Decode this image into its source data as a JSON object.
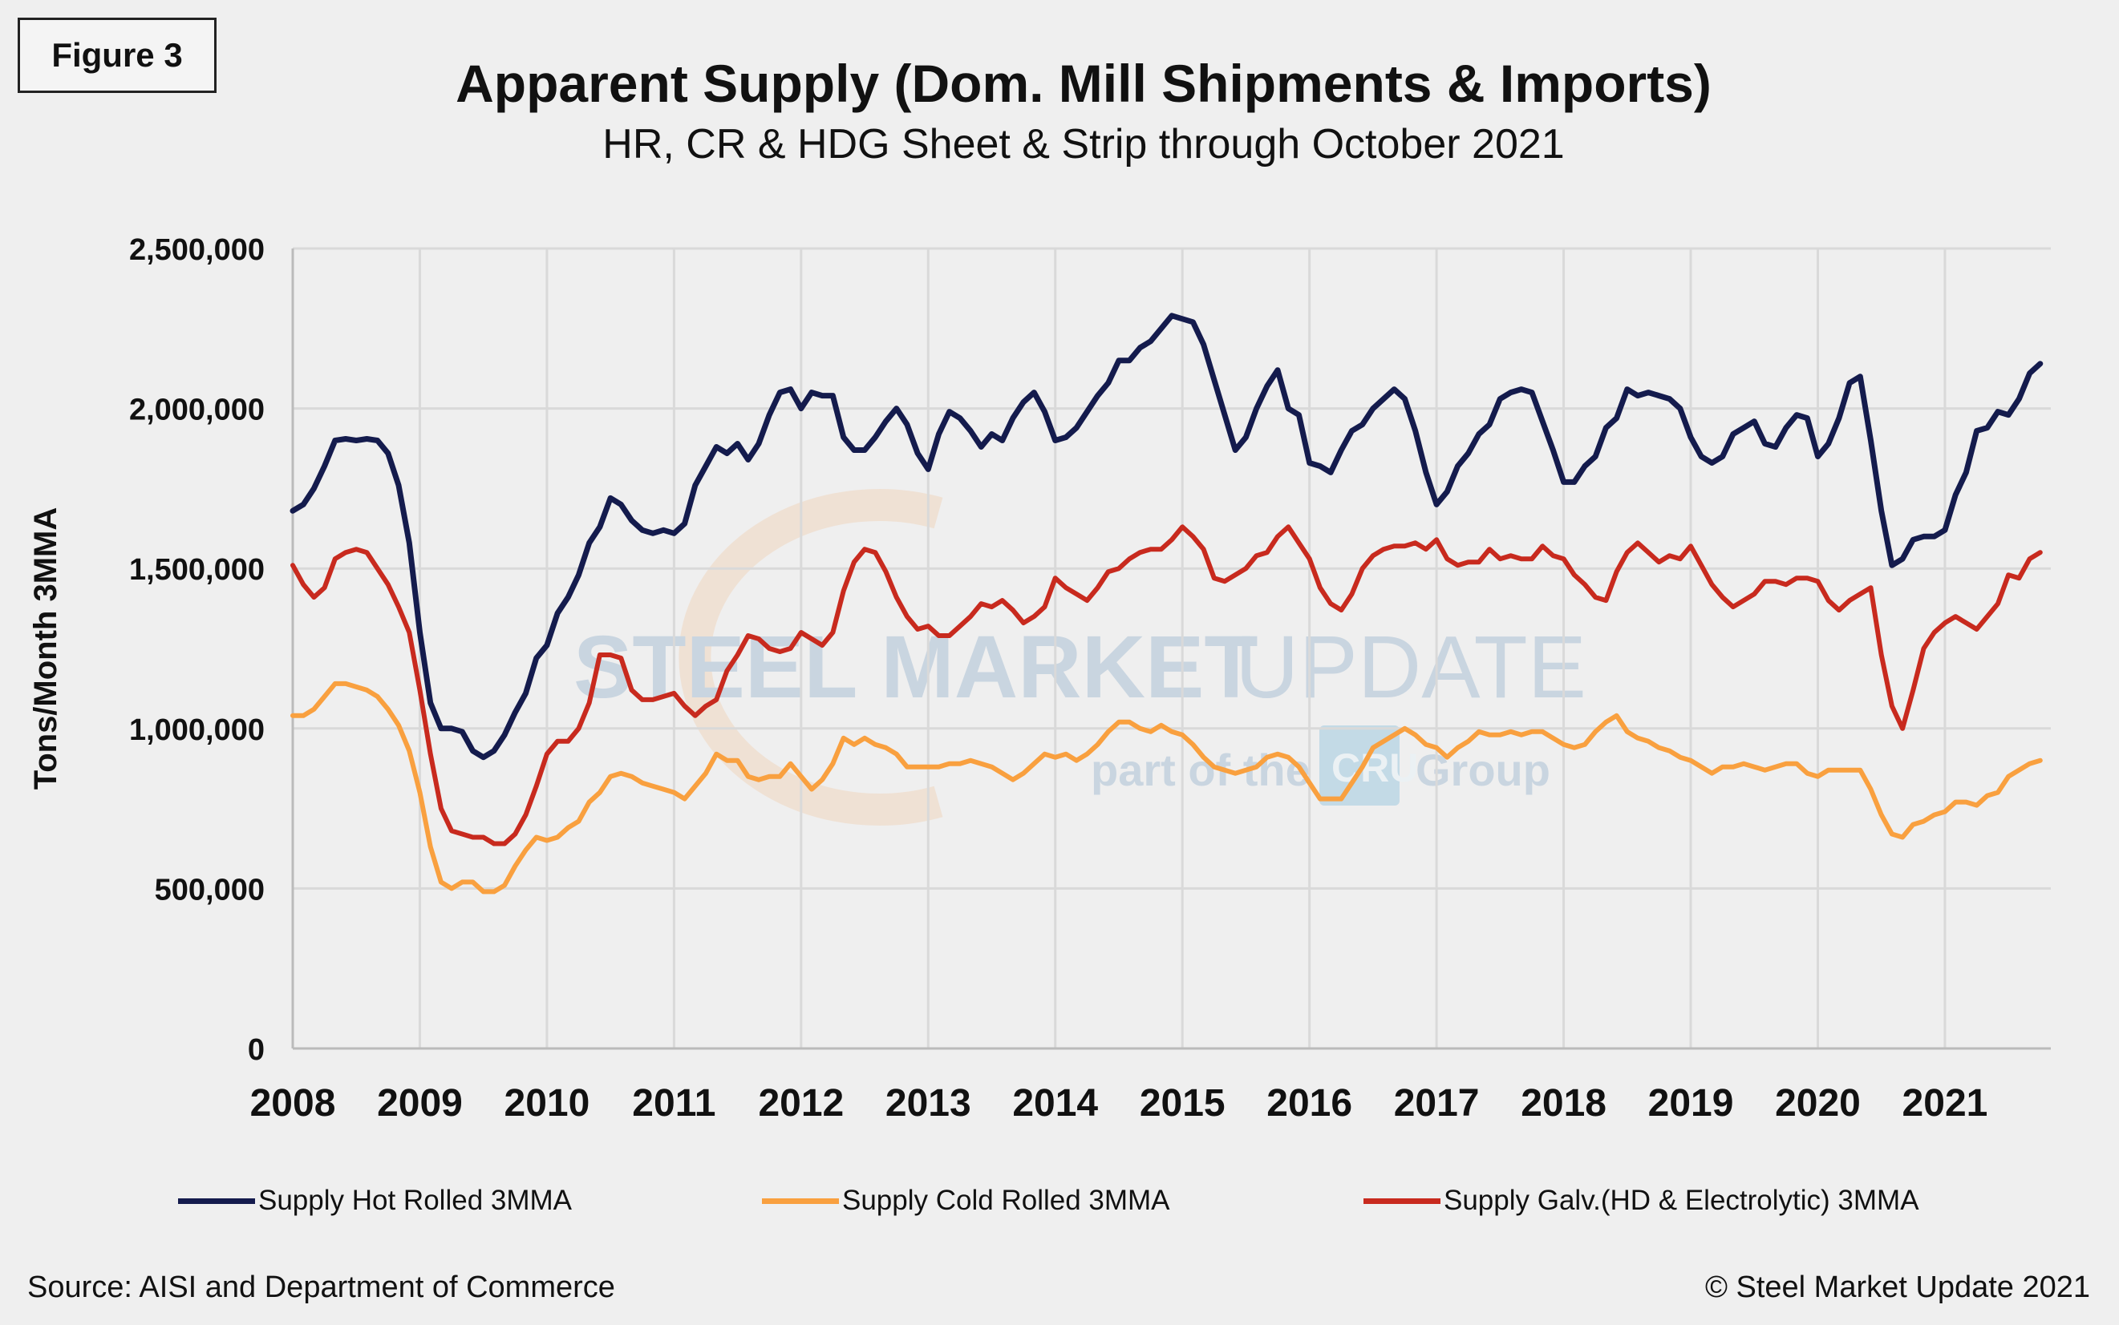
{
  "figure_label": "Figure 3",
  "source": "Source: AISI and Department of Commerce",
  "copyright": "© Steel Market Update 2021",
  "watermark": {
    "line1a": "STEEL MARKET",
    "line1b": "UPDATE",
    "line2a": "part of the",
    "line2b": "CRU",
    "line2c": "Group"
  },
  "chart_data": {
    "type": "line",
    "title": "Apparent Supply (Dom. Mill Shipments & Imports)",
    "subtitle": "HR, CR & HDG Sheet & Strip through October 2021",
    "xlabel": "",
    "ylabel": "Tons/Month 3MMA",
    "x_start": "2008-01",
    "x_end": "2021-10",
    "x_frequency": "monthly",
    "x_ticks": [
      "2008",
      "2009",
      "2010",
      "2011",
      "2012",
      "2013",
      "2014",
      "2015",
      "2016",
      "2017",
      "2018",
      "2019",
      "2020",
      "2021"
    ],
    "ylim": [
      0,
      2500000
    ],
    "y_ticks": [
      0,
      500000,
      1000000,
      1500000,
      2000000,
      2500000
    ],
    "y_tick_labels": [
      "0",
      "500,000",
      "1,000,000",
      "1,500,000",
      "2,000,000",
      "2,500,000"
    ],
    "grid": true,
    "legend_position": "bottom",
    "series": [
      {
        "name": "Supply Hot Rolled 3MMA",
        "color": "#141b4d",
        "values": [
          1680000,
          1700000,
          1750000,
          1820000,
          1900000,
          1905000,
          1900000,
          1905000,
          1900000,
          1860000,
          1760000,
          1580000,
          1300000,
          1080000,
          1000000,
          1000000,
          990000,
          930000,
          910000,
          930000,
          980000,
          1050000,
          1110000,
          1220000,
          1260000,
          1360000,
          1410000,
          1480000,
          1580000,
          1630000,
          1720000,
          1700000,
          1650000,
          1620000,
          1610000,
          1620000,
          1610000,
          1640000,
          1760000,
          1820000,
          1880000,
          1860000,
          1890000,
          1840000,
          1890000,
          1980000,
          2050000,
          2060000,
          2000000,
          2050000,
          2040000,
          2040000,
          1910000,
          1870000,
          1870000,
          1910000,
          1960000,
          2000000,
          1950000,
          1860000,
          1810000,
          1920000,
          1990000,
          1970000,
          1930000,
          1880000,
          1920000,
          1900000,
          1970000,
          2020000,
          2050000,
          1990000,
          1900000,
          1910000,
          1940000,
          1990000,
          2040000,
          2080000,
          2150000,
          2150000,
          2190000,
          2210000,
          2250000,
          2290000,
          2280000,
          2270000,
          2200000,
          2090000,
          1980000,
          1870000,
          1910000,
          2000000,
          2070000,
          2120000,
          2000000,
          1980000,
          1830000,
          1820000,
          1800000,
          1870000,
          1930000,
          1950000,
          2000000,
          2030000,
          2060000,
          2030000,
          1930000,
          1800000,
          1700000,
          1740000,
          1820000,
          1860000,
          1920000,
          1950000,
          2030000,
          2050000,
          2060000,
          2050000,
          1960000,
          1870000,
          1770000,
          1770000,
          1820000,
          1850000,
          1940000,
          1970000,
          2060000,
          2040000,
          2050000,
          2040000,
          2030000,
          2000000,
          1910000,
          1850000,
          1830000,
          1850000,
          1920000,
          1940000,
          1960000,
          1890000,
          1880000,
          1940000,
          1980000,
          1970000,
          1850000,
          1890000,
          1970000,
          2080000,
          2100000,
          1900000,
          1680000,
          1510000,
          1530000,
          1590000,
          1600000,
          1600000,
          1620000,
          1730000,
          1800000,
          1930000,
          1940000,
          1990000,
          1980000,
          2030000,
          2110000,
          2140000
        ]
      },
      {
        "name": "Supply Cold Rolled 3MMA",
        "color": "#f9a03f",
        "values": [
          1040000,
          1040000,
          1060000,
          1100000,
          1140000,
          1140000,
          1130000,
          1120000,
          1100000,
          1060000,
          1010000,
          930000,
          800000,
          630000,
          520000,
          500000,
          520000,
          520000,
          490000,
          490000,
          510000,
          570000,
          620000,
          660000,
          650000,
          660000,
          690000,
          710000,
          770000,
          800000,
          850000,
          860000,
          850000,
          830000,
          820000,
          810000,
          800000,
          780000,
          820000,
          860000,
          920000,
          900000,
          900000,
          850000,
          840000,
          850000,
          850000,
          890000,
          850000,
          810000,
          840000,
          890000,
          970000,
          950000,
          970000,
          950000,
          940000,
          920000,
          880000,
          880000,
          880000,
          880000,
          890000,
          890000,
          900000,
          890000,
          880000,
          860000,
          840000,
          860000,
          890000,
          920000,
          910000,
          920000,
          900000,
          920000,
          950000,
          990000,
          1020000,
          1020000,
          1000000,
          990000,
          1010000,
          990000,
          980000,
          950000,
          910000,
          880000,
          870000,
          860000,
          870000,
          880000,
          910000,
          920000,
          910000,
          880000,
          830000,
          780000,
          780000,
          780000,
          830000,
          880000,
          940000,
          960000,
          980000,
          1000000,
          980000,
          950000,
          940000,
          910000,
          940000,
          960000,
          990000,
          980000,
          980000,
          990000,
          980000,
          990000,
          990000,
          970000,
          950000,
          940000,
          950000,
          990000,
          1020000,
          1040000,
          990000,
          970000,
          960000,
          940000,
          930000,
          910000,
          900000,
          880000,
          860000,
          880000,
          880000,
          890000,
          880000,
          870000,
          880000,
          890000,
          890000,
          860000,
          850000,
          870000,
          870000,
          870000,
          870000,
          810000,
          730000,
          670000,
          660000,
          700000,
          710000,
          730000,
          740000,
          770000,
          770000,
          760000,
          790000,
          800000,
          850000,
          870000,
          890000,
          900000
        ]
      },
      {
        "name": "Supply Galv.(HD & Electrolytic) 3MMA",
        "color": "#c82a1e",
        "values": [
          1510000,
          1450000,
          1410000,
          1440000,
          1530000,
          1550000,
          1560000,
          1550000,
          1500000,
          1450000,
          1380000,
          1300000,
          1120000,
          920000,
          750000,
          680000,
          670000,
          660000,
          660000,
          640000,
          640000,
          670000,
          730000,
          820000,
          920000,
          960000,
          960000,
          1000000,
          1080000,
          1230000,
          1230000,
          1220000,
          1120000,
          1090000,
          1090000,
          1100000,
          1110000,
          1070000,
          1040000,
          1070000,
          1090000,
          1180000,
          1230000,
          1290000,
          1280000,
          1250000,
          1240000,
          1250000,
          1300000,
          1280000,
          1260000,
          1300000,
          1430000,
          1520000,
          1560000,
          1550000,
          1490000,
          1410000,
          1350000,
          1310000,
          1320000,
          1290000,
          1290000,
          1320000,
          1350000,
          1390000,
          1380000,
          1400000,
          1370000,
          1330000,
          1350000,
          1380000,
          1470000,
          1440000,
          1420000,
          1400000,
          1440000,
          1490000,
          1500000,
          1530000,
          1550000,
          1560000,
          1560000,
          1590000,
          1630000,
          1600000,
          1560000,
          1470000,
          1460000,
          1480000,
          1500000,
          1540000,
          1550000,
          1600000,
          1630000,
          1580000,
          1530000,
          1440000,
          1390000,
          1370000,
          1420000,
          1500000,
          1540000,
          1560000,
          1570000,
          1570000,
          1580000,
          1560000,
          1590000,
          1530000,
          1510000,
          1520000,
          1520000,
          1560000,
          1530000,
          1540000,
          1530000,
          1530000,
          1570000,
          1540000,
          1530000,
          1480000,
          1450000,
          1410000,
          1400000,
          1490000,
          1550000,
          1580000,
          1550000,
          1520000,
          1540000,
          1530000,
          1570000,
          1510000,
          1450000,
          1410000,
          1380000,
          1400000,
          1420000,
          1460000,
          1460000,
          1450000,
          1470000,
          1470000,
          1460000,
          1400000,
          1370000,
          1400000,
          1420000,
          1440000,
          1230000,
          1070000,
          1000000,
          1120000,
          1250000,
          1300000,
          1330000,
          1350000,
          1330000,
          1310000,
          1350000,
          1390000,
          1480000,
          1470000,
          1530000,
          1550000
        ]
      }
    ]
  }
}
